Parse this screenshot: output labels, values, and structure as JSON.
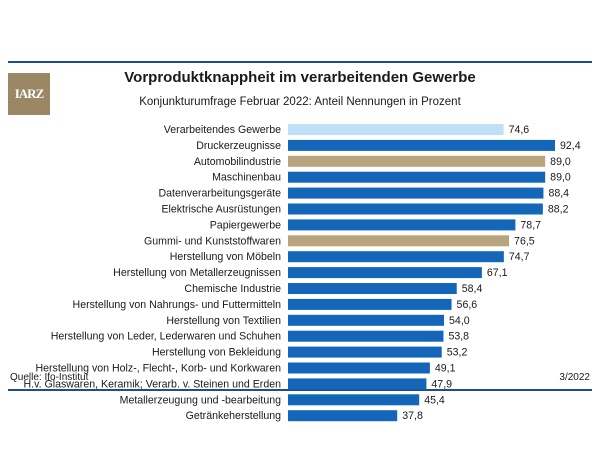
{
  "header": {
    "title": "Vorproduktknappheit im verarbeitenden Gewerbe",
    "subtitle": "Konjunkturumfrage Februar 2022: Anteil Nennungen in Prozent",
    "logo_text": "IARZ"
  },
  "footer": {
    "source": "Quelle: Ifo-Institut",
    "date": "3/2022"
  },
  "colors": {
    "bar_default": "#1466b8",
    "bar_total": "#bfe0f7",
    "bar_highlight": "#b8a57d",
    "rule": "#1f4e8c",
    "logo_bg": "#9c8764"
  },
  "chart_data": {
    "type": "bar",
    "orientation": "horizontal",
    "title": "Vorproduktknappheit im verarbeitenden Gewerbe",
    "subtitle": "Konjunkturumfrage Februar 2022: Anteil Nennungen in Prozent",
    "xlim": [
      0,
      100
    ],
    "grid": false,
    "categories": [
      "Verarbeitendes Gewerbe",
      "Druckerzeugnisse",
      "Automobilindustrie",
      "Maschinenbau",
      "Datenverarbeitungsgeräte",
      "Elektrische Ausrüstungen",
      "Papiergewerbe",
      "Gummi- und Kunststoffwaren",
      "Herstellung von Möbeln",
      "Herstellung von Metallerzeugnissen",
      "Chemische Industrie",
      "Herstellung von Nahrungs- und Futtermitteln",
      "Herstellung von Textilien",
      "Herstellung von Leder, Lederwaren und Schuhen",
      "Herstellung von Bekleidung",
      "Herstellung von Holz-, Flecht-, Korb- und Korkwaren",
      "H.v. Glaswaren, Keramik; Verarb. v. Steinen und Erden",
      "Metallerzeugung und -bearbeitung",
      "Getränkeherstellung"
    ],
    "values": [
      74.6,
      92.4,
      89.0,
      89.0,
      88.4,
      88.2,
      78.7,
      76.5,
      74.7,
      67.1,
      58.4,
      56.6,
      54.0,
      53.8,
      53.2,
      49.1,
      47.9,
      45.4,
      37.8
    ],
    "value_labels": [
      "74,6",
      "92,4",
      "89,0",
      "89,0",
      "88,4",
      "88,2",
      "78,7",
      "76,5",
      "74,7",
      "67,1",
      "58,4",
      "56,6",
      "54,0",
      "53,8",
      "53,2",
      "49,1",
      "47,9",
      "45,4",
      "37,8"
    ],
    "bar_styles": [
      "total",
      "default",
      "highlight",
      "default",
      "default",
      "default",
      "default",
      "highlight",
      "default",
      "default",
      "default",
      "default",
      "default",
      "default",
      "default",
      "default",
      "default",
      "default",
      "default"
    ]
  }
}
